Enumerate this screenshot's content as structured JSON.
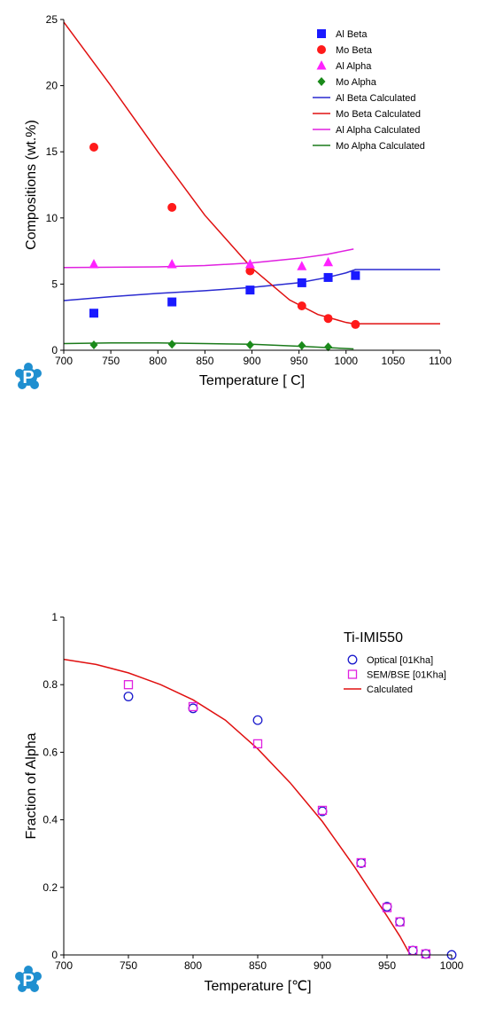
{
  "logo": {
    "letter": "P",
    "color": "#1f8fd0"
  },
  "chart_data": [
    {
      "type": "scatter",
      "xlabel": "Temperature [ C]",
      "ylabel": "Compositions (wt.%)",
      "xlim": [
        700,
        1100
      ],
      "ylim": [
        0,
        25
      ],
      "xticks": [
        700,
        750,
        800,
        850,
        900,
        950,
        1000,
        1050,
        1100
      ],
      "yticks": [
        0,
        5,
        10,
        15,
        20,
        25
      ],
      "legend_position": "top-right",
      "series": [
        {
          "name": "Al Beta",
          "kind": "points",
          "marker": "square",
          "color": "#1a1aff",
          "x": [
            732,
            815,
            898,
            953,
            981,
            1010
          ],
          "y": [
            2.8,
            3.65,
            4.55,
            5.1,
            5.5,
            5.65
          ]
        },
        {
          "name": "Mo Beta",
          "kind": "points",
          "marker": "circle",
          "color": "#ff1a1a",
          "x": [
            732,
            815,
            898,
            953,
            981,
            1010
          ],
          "y": [
            15.35,
            10.8,
            6.0,
            3.35,
            2.4,
            1.95
          ]
        },
        {
          "name": "Al Alpha",
          "kind": "points",
          "marker": "triangle",
          "color": "#ff22ff",
          "x": [
            732,
            815,
            898,
            953,
            981
          ],
          "y": [
            6.5,
            6.5,
            6.5,
            6.35,
            6.65
          ]
        },
        {
          "name": "Mo Alpha",
          "kind": "points",
          "marker": "diamond",
          "color": "#1a8a1a",
          "x": [
            732,
            815,
            898,
            953,
            981
          ],
          "y": [
            0.4,
            0.45,
            0.4,
            0.35,
            0.25
          ]
        },
        {
          "name": "Al Beta Calculated",
          "kind": "line",
          "color": "#2a2ad0",
          "x": [
            700,
            750,
            800,
            850,
            900,
            950,
            980,
            1000,
            1008,
            1010,
            1050,
            1100
          ],
          "y": [
            3.75,
            4.05,
            4.3,
            4.5,
            4.75,
            5.1,
            5.5,
            5.85,
            6.05,
            6.1,
            6.1,
            6.1
          ]
        },
        {
          "name": "Mo Beta Calculated",
          "kind": "line",
          "color": "#e01010",
          "x": [
            700,
            750,
            800,
            850,
            900,
            940,
            970,
            1000,
            1008,
            1010,
            1050,
            1100
          ],
          "y": [
            24.8,
            20.0,
            15.0,
            10.2,
            6.2,
            3.8,
            2.7,
            2.1,
            2.0,
            2.0,
            2.0,
            2.0
          ]
        },
        {
          "name": "Al Alpha Calculated",
          "kind": "line",
          "color": "#e020e0",
          "x": [
            700,
            800,
            850,
            900,
            950,
            980,
            1008
          ],
          "y": [
            6.25,
            6.3,
            6.4,
            6.6,
            6.95,
            7.25,
            7.65
          ]
        },
        {
          "name": "Mo Alpha Calculated",
          "kind": "line",
          "color": "#1a7a1a",
          "x": [
            700,
            750,
            800,
            850,
            900,
            950,
            1008
          ],
          "y": [
            0.5,
            0.55,
            0.55,
            0.5,
            0.45,
            0.3,
            0.1
          ]
        }
      ]
    },
    {
      "type": "scatter",
      "title": "Ti-IMI550",
      "xlabel": "Temperature [℃]",
      "ylabel": "Fraction of Alpha",
      "xlim": [
        700,
        1000
      ],
      "ylim": [
        0,
        1
      ],
      "xticks": [
        700,
        750,
        800,
        850,
        900,
        950,
        1000
      ],
      "yticks": [
        0,
        0.2,
        0.4,
        0.6,
        0.8,
        1
      ],
      "ytick_labels": [
        "0",
        "0.2",
        "0.4",
        "0.6",
        "0.8",
        "1"
      ],
      "legend_position": "top-right",
      "series": [
        {
          "name": "Optical [01Kha]",
          "kind": "points",
          "marker": "open-circle",
          "color": "#1a1acc",
          "x": [
            750,
            800,
            850,
            900,
            930,
            950,
            960,
            970,
            980,
            1000
          ],
          "y": [
            0.765,
            0.73,
            0.695,
            0.425,
            0.272,
            0.143,
            0.098,
            0.013,
            0.003,
            0.0
          ]
        },
        {
          "name": "SEM/BSE [01Kha]",
          "kind": "points",
          "marker": "open-square",
          "color": "#e020e0",
          "x": [
            750,
            800,
            850,
            900,
            930,
            950,
            960,
            970,
            980
          ],
          "y": [
            0.8,
            0.735,
            0.625,
            0.428,
            0.273,
            0.14,
            0.098,
            0.013,
            0.003
          ]
        },
        {
          "name": "Calculated",
          "kind": "line",
          "color": "#e01010",
          "x": [
            700,
            725,
            750,
            775,
            800,
            825,
            850,
            875,
            900,
            925,
            950,
            960,
            968
          ],
          "y": [
            0.875,
            0.86,
            0.835,
            0.8,
            0.755,
            0.695,
            0.61,
            0.51,
            0.395,
            0.26,
            0.115,
            0.055,
            0.0
          ]
        }
      ]
    }
  ]
}
